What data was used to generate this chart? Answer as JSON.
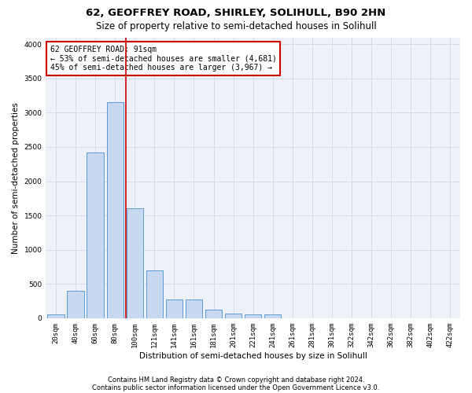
{
  "title1": "62, GEOFFREY ROAD, SHIRLEY, SOLIHULL, B90 2HN",
  "title2": "Size of property relative to semi-detached houses in Solihull",
  "xlabel": "Distribution of semi-detached houses by size in Solihull",
  "ylabel": "Number of semi-detached properties",
  "footnote1": "Contains HM Land Registry data © Crown copyright and database right 2024.",
  "footnote2": "Contains public sector information licensed under the Open Government Licence v3.0.",
  "bar_labels": [
    "20sqm",
    "40sqm",
    "60sqm",
    "80sqm",
    "100sqm",
    "121sqm",
    "141sqm",
    "161sqm",
    "181sqm",
    "201sqm",
    "221sqm",
    "241sqm",
    "261sqm",
    "281sqm",
    "301sqm",
    "322sqm",
    "342sqm",
    "362sqm",
    "382sqm",
    "402sqm",
    "422sqm"
  ],
  "bar_heights": [
    50,
    400,
    2420,
    3150,
    1600,
    700,
    270,
    270,
    120,
    70,
    60,
    50,
    0,
    0,
    0,
    0,
    0,
    0,
    0,
    0,
    0
  ],
  "bar_color": "#c6d9f0",
  "bar_edge_color": "#5b9bd5",
  "property_label": "62 GEOFFREY ROAD: 91sqm",
  "pct_smaller": 53,
  "count_smaller": 4681,
  "pct_larger": 45,
  "count_larger": 3967,
  "vline_color": "#cc0000",
  "annotation_box_color": "#cc0000",
  "ylim": [
    0,
    4100
  ],
  "yticks": [
    0,
    500,
    1000,
    1500,
    2000,
    2500,
    3000,
    3500,
    4000
  ],
  "grid_color": "#d0d8e8",
  "bg_color": "#eef2f8",
  "title_fontsize": 9.5,
  "subtitle_fontsize": 8.5,
  "axis_label_fontsize": 7.5,
  "tick_fontsize": 6.5,
  "annotation_fontsize": 7,
  "footnote_fontsize": 6
}
